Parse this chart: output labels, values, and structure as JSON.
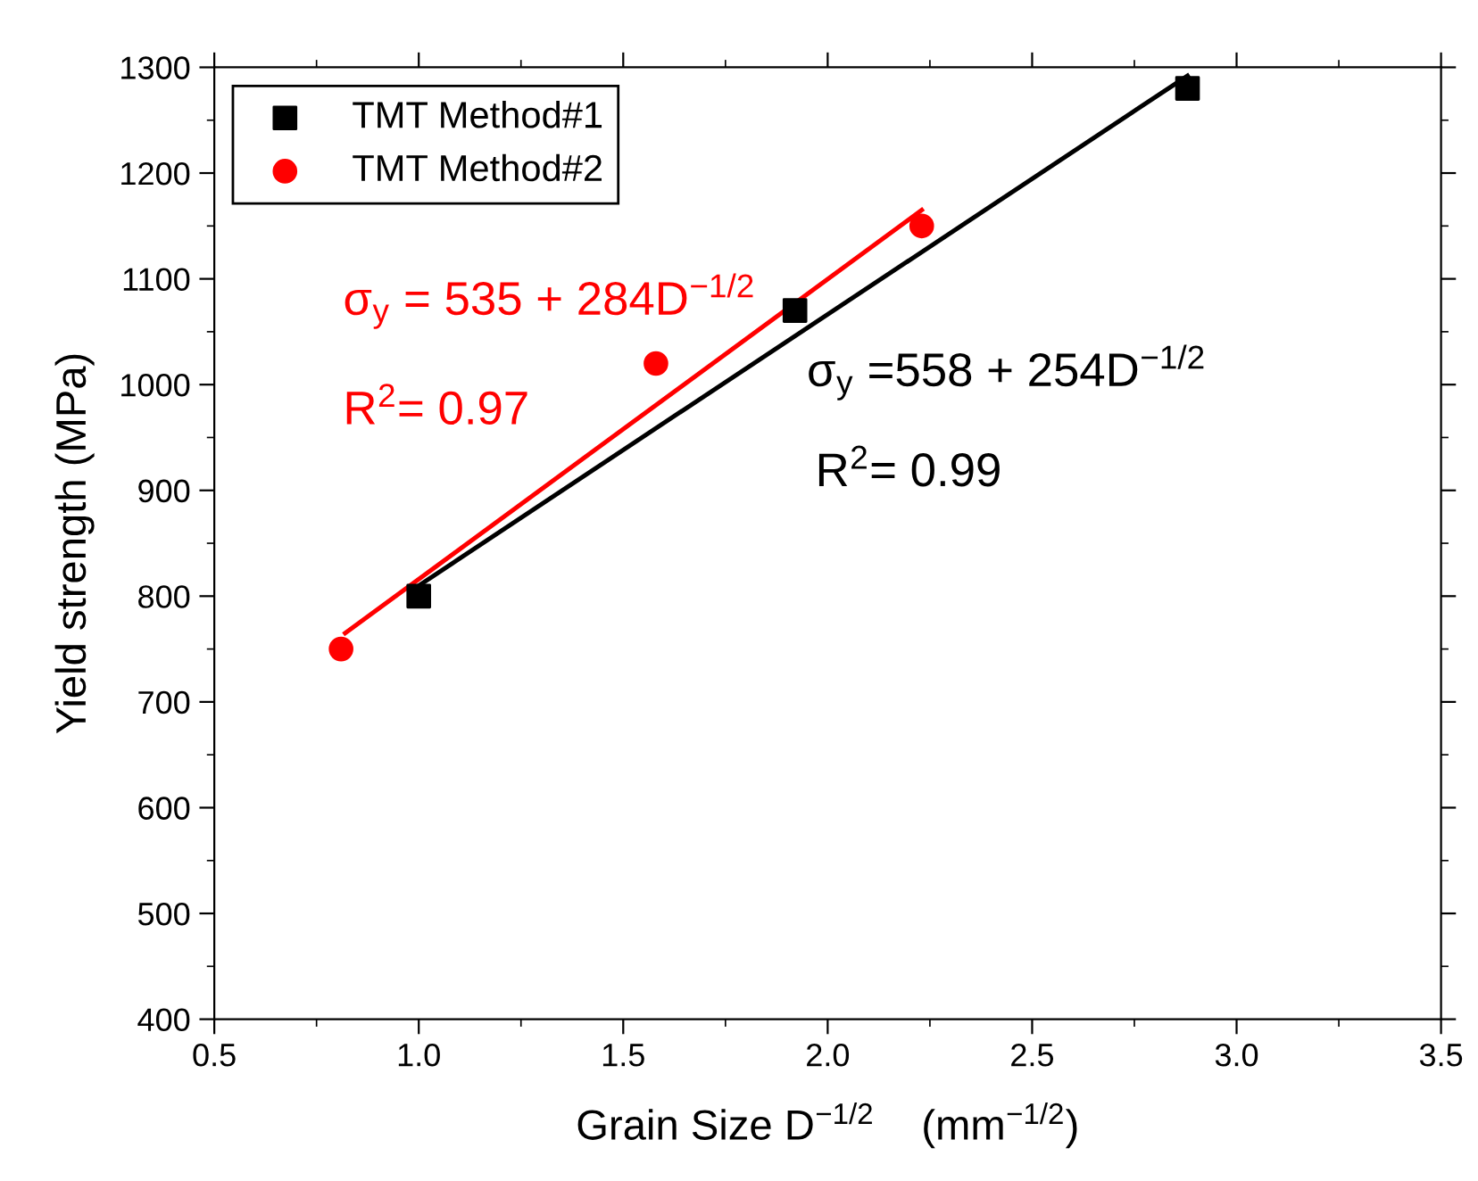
{
  "chart_data": {
    "type": "scatter",
    "xlabel": "Grain Size D$^{−1/2}$    (mm$^{−1/2}$)",
    "ylabel": "Yield strength (MPa)",
    "xlim": [
      0.5,
      3.5
    ],
    "xticks": [
      0.5,
      {
        "value": 1,
        "label": "1.0"
      },
      1.5,
      {
        "value": 2,
        "label": "2.0"
      },
      2.5,
      {
        "value": 3,
        "label": "3.0"
      },
      3.5
    ],
    "ylim": [
      400,
      1300
    ],
    "yticks": [
      400,
      500,
      600,
      700,
      800,
      900,
      1000,
      1100,
      1200,
      1300
    ],
    "grid": false,
    "legend": "top left",
    "series": [
      {
        "name": "TMT Method#1",
        "color": "#000000",
        "marker": "square",
        "x": [
          1.0,
          1.92,
          2.88
        ],
        "values": [
          800,
          1070,
          1280
        ]
      },
      {
        "name": "TMT Method#2",
        "color": "#ff0000",
        "marker": "circle",
        "x": [
          0.81,
          1.58,
          2.23
        ],
        "values": [
          750,
          1020,
          1150
        ]
      },
      {
        "type": "line",
        "color": "#000000",
        "marker": "none",
        "line_style": "solid",
        "x": [
          1.0,
          2.88
        ],
        "values": [
          810,
          1292
        ]
      },
      {
        "type": "line",
        "color": "#ff0000",
        "marker": "none",
        "line_style": "solid",
        "x": [
          0.82,
          2.23
        ],
        "values": [
          765,
          1165
        ]
      }
    ],
    "annotations": [
      "σ$_{y}$ =558 + 254D$^{−1/2}$",
      "R$^{2}$= 0.99",
      "σ$_{y}$ = 535 + 284D$^{−1/2}$",
      "R$^{2}$= 0.97"
    ]
  }
}
